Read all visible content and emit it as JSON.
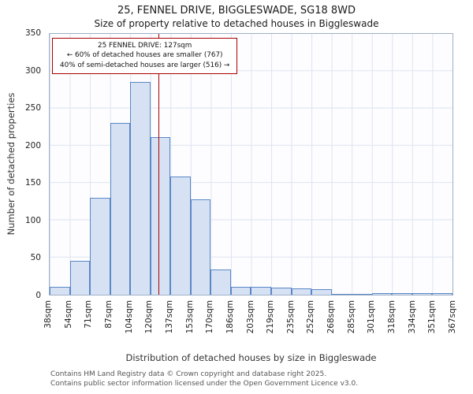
{
  "chart_data": {
    "type": "bar",
    "title": "25, FENNEL DRIVE, BIGGLESWADE, SG18 8WD",
    "subtitle": "Size of property relative to detached houses in Biggleswade",
    "xlabel": "Distribution of detached houses by size in Biggleswade",
    "ylabel": "Number of detached properties",
    "ylim": [
      0,
      350
    ],
    "yticks": [
      0,
      50,
      100,
      150,
      200,
      250,
      300,
      350
    ],
    "x_min_sqm": 38,
    "x_max_sqm": 367,
    "grid": true,
    "bar_fill": "#d6e2f4",
    "bar_edge": "#5a87c5",
    "bin_edge_labels": [
      "38sqm",
      "54sqm",
      "71sqm",
      "87sqm",
      "104sqm",
      "120sqm",
      "137sqm",
      "153sqm",
      "170sqm",
      "186sqm",
      "203sqm",
      "219sqm",
      "235sqm",
      "252sqm",
      "268sqm",
      "285sqm",
      "301sqm",
      "318sqm",
      "334sqm",
      "351sqm",
      "367sqm"
    ],
    "values": [
      11,
      46,
      130,
      231,
      286,
      212,
      159,
      128,
      34,
      11,
      11,
      10,
      9,
      7,
      1,
      1,
      2,
      2,
      2,
      2
    ],
    "marker": {
      "value_sqm": 127,
      "color": "#aa0000",
      "annotation_lines": [
        "25 FENNEL DRIVE: 127sqm",
        "← 60% of detached houses are smaller (767)",
        "40% of semi-detached houses are larger (516) →"
      ]
    }
  },
  "footer": {
    "line1": "Contains HM Land Registry data © Crown copyright and database right 2025.",
    "line2": "Contains public sector information licensed under the Open Government Licence v3.0."
  }
}
